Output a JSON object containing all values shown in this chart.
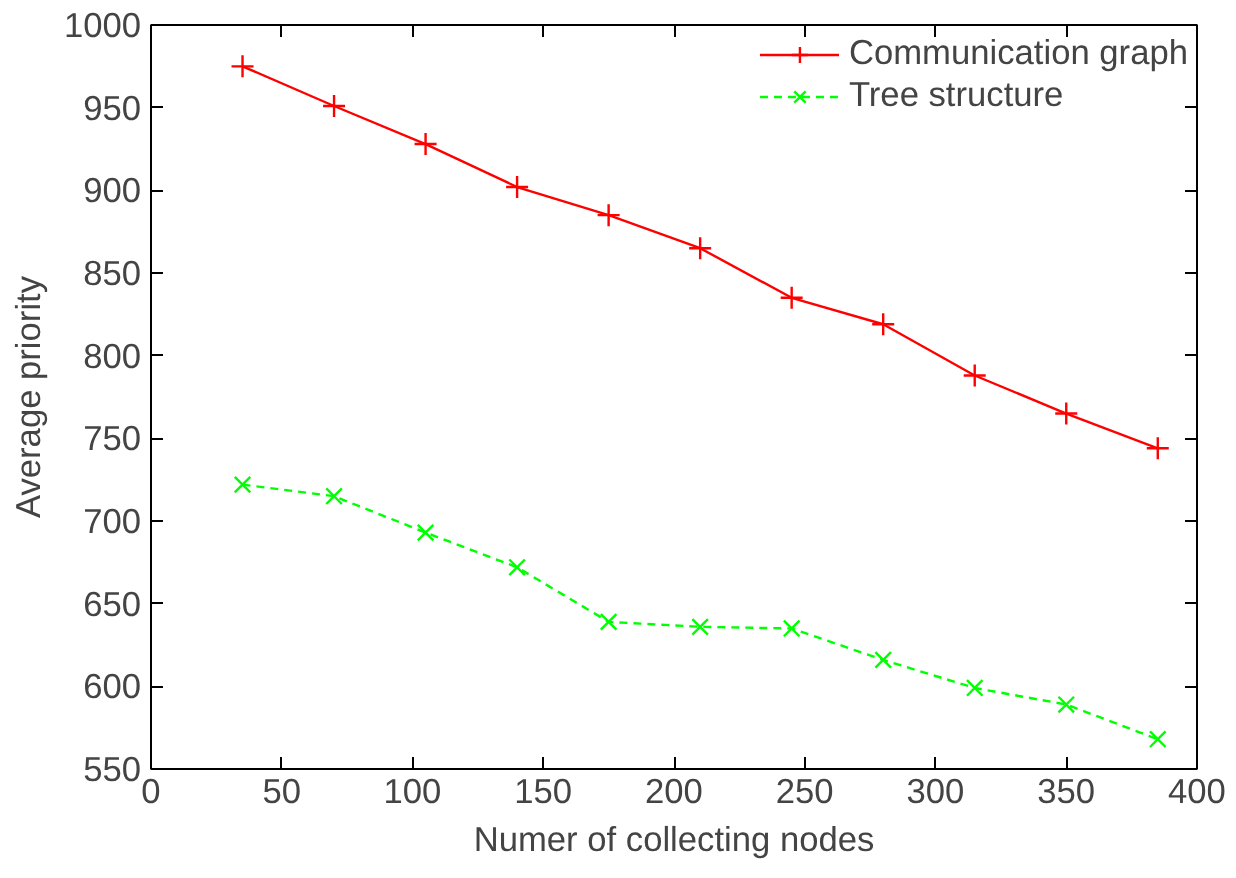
{
  "chart_data": {
    "type": "line",
    "xlabel": "Numer of collecting nodes",
    "ylabel": "Average priority",
    "x": [
      35,
      70,
      105,
      140,
      175,
      210,
      245,
      280,
      315,
      350,
      385
    ],
    "series": [
      {
        "name": "Communication graph",
        "color": "#ff0000",
        "marker": "cross",
        "line_style": "solid",
        "values": [
          975,
          951,
          928,
          902,
          885,
          865,
          835,
          819,
          788,
          765,
          744
        ]
      },
      {
        "name": "Tree structure",
        "color": "#00ff00",
        "marker": "x",
        "line_style": "dashed",
        "values": [
          722,
          715,
          693,
          672,
          639,
          636,
          635,
          616,
          599,
          589,
          568
        ]
      }
    ],
    "xlim": [
      0,
      400
    ],
    "xticks": [
      0,
      50,
      100,
      150,
      200,
      250,
      300,
      350,
      400
    ],
    "ylim": [
      550,
      1000
    ],
    "yticks": [
      550,
      600,
      650,
      700,
      750,
      800,
      850,
      900,
      950,
      1000
    ],
    "grid": false,
    "legend": "top right"
  }
}
